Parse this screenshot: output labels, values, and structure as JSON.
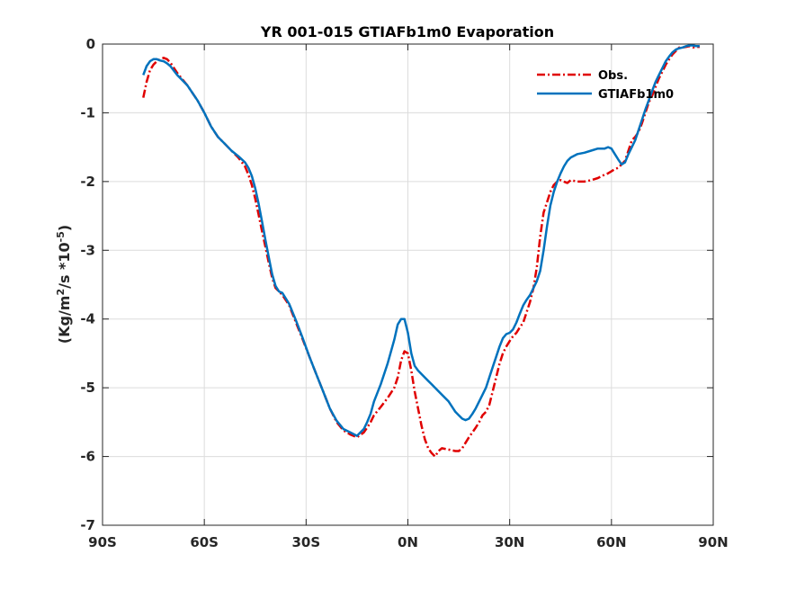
{
  "chart_data": {
    "type": "line",
    "title": "YR 001-015 GTIAFb1m0 Evaporation",
    "xlabel": "",
    "ylabel": "(Kg/m2/s *10-5)",
    "ylabel_parts": {
      "prefix": "(Kg/m",
      "sup1": "2",
      "middle": "/s *10",
      "sup2": "-5",
      "suffix": ")"
    },
    "xlim": [
      -90,
      90
    ],
    "ylim": [
      -7,
      0
    ],
    "xticks": [
      -90,
      -60,
      -30,
      0,
      30,
      60,
      90
    ],
    "xtick_labels": [
      "90S",
      "60S",
      "30S",
      "0N",
      "30N",
      "60N",
      "90N"
    ],
    "yticks": [
      0,
      -1,
      -2,
      -3,
      -4,
      -5,
      -6,
      -7
    ],
    "ytick_labels": [
      "0",
      "-1",
      "-2",
      "-3",
      "-4",
      "-5",
      "-6",
      "-7"
    ],
    "grid": true,
    "legend_position": "top-right",
    "series": [
      {
        "name": "Obs.",
        "color": "#e00000",
        "style": "dash-dot",
        "x": [
          -78,
          -77,
          -76,
          -75,
          -74,
          -73,
          -72,
          -71,
          -70,
          -68,
          -65,
          -62,
          -60,
          -58,
          -56,
          -54,
          -52,
          -50,
          -48,
          -47,
          -46,
          -45,
          -44,
          -43,
          -42,
          -41,
          -40,
          -39,
          -38,
          -37,
          -35,
          -33,
          -31,
          -29,
          -27,
          -25,
          -23,
          -21,
          -19,
          -17,
          -15,
          -13,
          -12,
          -11,
          -10,
          -8,
          -6,
          -4,
          -3,
          -2,
          -1,
          0,
          1,
          2,
          3,
          4,
          5,
          6,
          7,
          8,
          9,
          10,
          12,
          14,
          15,
          16,
          17,
          18,
          19,
          20,
          21,
          22,
          23,
          24,
          25,
          26,
          27,
          28,
          29,
          30,
          31,
          32,
          33,
          34,
          35,
          36,
          37,
          38,
          39,
          40,
          41,
          42,
          43,
          44,
          45,
          46,
          47,
          48,
          50,
          52,
          54,
          56,
          58,
          59,
          60,
          61,
          62,
          63,
          64,
          65,
          66,
          67,
          68,
          69,
          70,
          71,
          72,
          73,
          74,
          75,
          76,
          77,
          78,
          79,
          80,
          81,
          82,
          83,
          84,
          85,
          86
        ],
        "y": [
          -0.78,
          -0.55,
          -0.38,
          -0.3,
          -0.25,
          -0.22,
          -0.2,
          -0.22,
          -0.27,
          -0.42,
          -0.6,
          -0.82,
          -1.0,
          -1.2,
          -1.35,
          -1.45,
          -1.55,
          -1.65,
          -1.78,
          -1.9,
          -2.05,
          -2.25,
          -2.48,
          -2.72,
          -2.95,
          -3.18,
          -3.4,
          -3.55,
          -3.6,
          -3.65,
          -3.8,
          -4.05,
          -4.3,
          -4.55,
          -4.8,
          -5.05,
          -5.3,
          -5.5,
          -5.62,
          -5.68,
          -5.72,
          -5.65,
          -5.58,
          -5.5,
          -5.4,
          -5.28,
          -5.15,
          -5.0,
          -4.85,
          -4.6,
          -4.47,
          -4.5,
          -4.75,
          -5.05,
          -5.3,
          -5.55,
          -5.75,
          -5.88,
          -5.95,
          -6.0,
          -5.92,
          -5.88,
          -5.9,
          -5.92,
          -5.92,
          -5.88,
          -5.8,
          -5.72,
          -5.65,
          -5.58,
          -5.5,
          -5.4,
          -5.35,
          -5.25,
          -5.05,
          -4.85,
          -4.65,
          -4.5,
          -4.4,
          -4.32,
          -4.25,
          -4.2,
          -4.12,
          -4.05,
          -3.9,
          -3.75,
          -3.55,
          -3.25,
          -2.8,
          -2.45,
          -2.3,
          -2.15,
          -2.05,
          -2.0,
          -1.98,
          -2.0,
          -2.02,
          -1.98,
          -2.0,
          -2.0,
          -1.98,
          -1.95,
          -1.9,
          -1.88,
          -1.85,
          -1.82,
          -1.8,
          -1.75,
          -1.7,
          -1.55,
          -1.4,
          -1.35,
          -1.28,
          -1.15,
          -1.0,
          -0.85,
          -0.75,
          -0.62,
          -0.5,
          -0.4,
          -0.3,
          -0.22,
          -0.15,
          -0.1,
          -0.05,
          -0.05,
          -0.04,
          -0.03,
          -0.05,
          -0.04,
          -0.04
        ]
      },
      {
        "name": "GTIAFb1m0",
        "color": "#0072bd",
        "style": "solid",
        "x": [
          -78,
          -77,
          -76,
          -75,
          -74,
          -73,
          -72,
          -71,
          -70,
          -68,
          -65,
          -62,
          -60,
          -58,
          -56,
          -54,
          -52,
          -50,
          -48,
          -47,
          -46,
          -45,
          -44,
          -43,
          -42,
          -41,
          -40,
          -39,
          -38,
          -37,
          -35,
          -33,
          -31,
          -29,
          -27,
          -25,
          -23,
          -21,
          -19,
          -17,
          -15,
          -13,
          -12,
          -11,
          -10,
          -8,
          -6,
          -4,
          -3,
          -2,
          -1,
          0,
          1,
          2,
          3,
          4,
          5,
          6,
          7,
          8,
          9,
          10,
          12,
          14,
          15,
          16,
          17,
          18,
          19,
          20,
          21,
          22,
          23,
          24,
          25,
          26,
          27,
          28,
          29,
          30,
          31,
          32,
          33,
          34,
          35,
          36,
          37,
          38,
          39,
          40,
          41,
          42,
          43,
          44,
          45,
          46,
          47,
          48,
          50,
          52,
          54,
          56,
          58,
          59,
          60,
          61,
          62,
          63,
          64,
          65,
          66,
          67,
          68,
          69,
          70,
          71,
          72,
          73,
          74,
          75,
          76,
          77,
          78,
          79,
          80,
          81,
          82,
          83,
          84,
          85,
          86
        ],
        "y": [
          -0.45,
          -0.32,
          -0.25,
          -0.22,
          -0.22,
          -0.24,
          -0.25,
          -0.28,
          -0.32,
          -0.45,
          -0.6,
          -0.82,
          -1.0,
          -1.2,
          -1.35,
          -1.45,
          -1.55,
          -1.63,
          -1.72,
          -1.8,
          -1.92,
          -2.1,
          -2.32,
          -2.58,
          -2.85,
          -3.1,
          -3.35,
          -3.52,
          -3.6,
          -3.62,
          -3.78,
          -4.02,
          -4.28,
          -4.55,
          -4.8,
          -5.05,
          -5.3,
          -5.48,
          -5.6,
          -5.65,
          -5.7,
          -5.6,
          -5.5,
          -5.38,
          -5.2,
          -4.95,
          -4.65,
          -4.3,
          -4.08,
          -4.0,
          -4.0,
          -4.2,
          -4.5,
          -4.68,
          -4.75,
          -4.8,
          -4.85,
          -4.9,
          -4.95,
          -5.0,
          -5.05,
          -5.1,
          -5.2,
          -5.35,
          -5.4,
          -5.45,
          -5.47,
          -5.45,
          -5.38,
          -5.3,
          -5.2,
          -5.1,
          -5.0,
          -4.85,
          -4.7,
          -4.55,
          -4.4,
          -4.28,
          -4.22,
          -4.2,
          -4.15,
          -4.05,
          -3.92,
          -3.8,
          -3.72,
          -3.65,
          -3.55,
          -3.45,
          -3.3,
          -3.0,
          -2.65,
          -2.35,
          -2.15,
          -2.0,
          -1.88,
          -1.78,
          -1.7,
          -1.65,
          -1.6,
          -1.58,
          -1.55,
          -1.52,
          -1.52,
          -1.5,
          -1.52,
          -1.6,
          -1.68,
          -1.75,
          -1.72,
          -1.6,
          -1.5,
          -1.4,
          -1.25,
          -1.1,
          -0.95,
          -0.82,
          -0.68,
          -0.55,
          -0.45,
          -0.35,
          -0.25,
          -0.18,
          -0.12,
          -0.08,
          -0.06,
          -0.05,
          -0.03,
          -0.02,
          -0.02,
          -0.03,
          -0.03
        ]
      }
    ]
  }
}
